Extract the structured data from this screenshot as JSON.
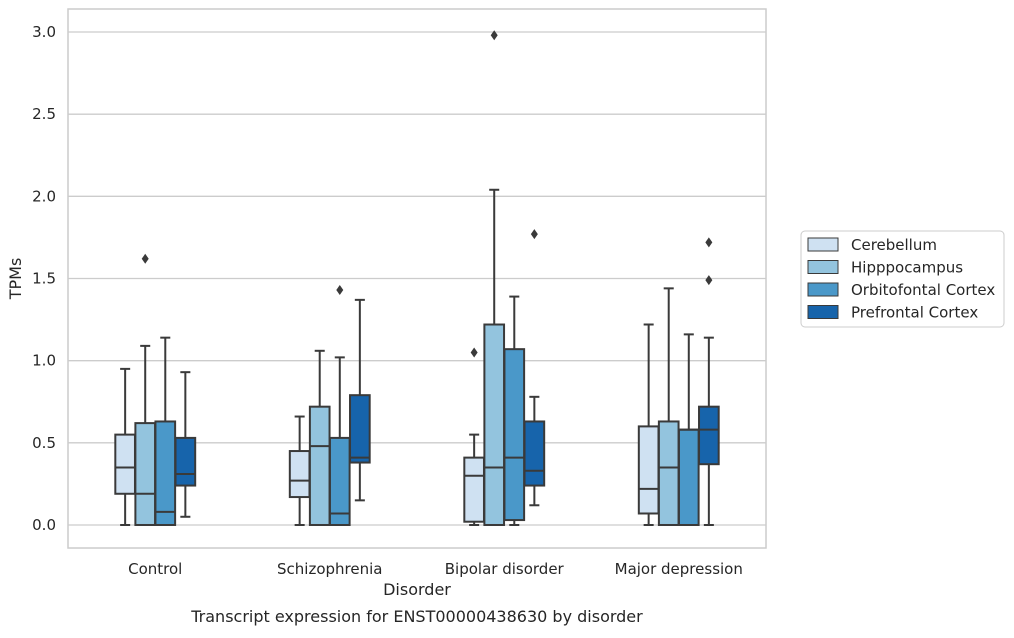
{
  "caption": "Transcript expression for ENST00000438630 by disorder",
  "colors": {
    "Cerebellum": "#cfe1f2",
    "Hipppocampus": "#93c4de",
    "Orbitofontal Cortex": "#4a98c9",
    "Prefrontal Cortex": "#1764ab",
    "edge": "#3a3a3a",
    "grid": "#cccccc",
    "frame": "#cccccc"
  },
  "chart_data": {
    "type": "box",
    "xlabel": "Disorder",
    "ylabel": "TPMs",
    "ylim": [
      -0.14,
      3.14
    ],
    "yticks": [
      0.0,
      0.5,
      1.0,
      1.5,
      2.0,
      2.5,
      3.0
    ],
    "ytick_labels": [
      "0.0",
      "0.5",
      "1.0",
      "1.5",
      "2.0",
      "2.5",
      "3.0"
    ],
    "grid": true,
    "legend_position": "right",
    "categories": [
      "Control",
      "Schizophrenia",
      "Bipolar disorder",
      "Major depression"
    ],
    "series": [
      {
        "name": "Cerebellum",
        "boxes": [
          {
            "whislo": 0.0,
            "q1": 0.19,
            "med": 0.35,
            "q3": 0.55,
            "whishi": 0.95,
            "fliers": []
          },
          {
            "whislo": 0.0,
            "q1": 0.17,
            "med": 0.27,
            "q3": 0.45,
            "whishi": 0.66,
            "fliers": []
          },
          {
            "whislo": 0.0,
            "q1": 0.02,
            "med": 0.3,
            "q3": 0.41,
            "whishi": 0.55,
            "fliers": [
              1.05
            ]
          },
          {
            "whislo": 0.0,
            "q1": 0.07,
            "med": 0.22,
            "q3": 0.6,
            "whishi": 1.22,
            "fliers": []
          }
        ]
      },
      {
        "name": "Hipppocampus",
        "boxes": [
          {
            "whislo": 0.0,
            "q1": 0.0,
            "med": 0.19,
            "q3": 0.62,
            "whishi": 1.09,
            "fliers": [
              1.62
            ]
          },
          {
            "whislo": 0.0,
            "q1": 0.0,
            "med": 0.48,
            "q3": 0.72,
            "whishi": 1.06,
            "fliers": []
          },
          {
            "whislo": 0.0,
            "q1": 0.0,
            "med": 0.35,
            "q3": 1.22,
            "whishi": 2.04,
            "fliers": [
              2.98
            ]
          },
          {
            "whislo": 0.0,
            "q1": 0.0,
            "med": 0.35,
            "q3": 0.63,
            "whishi": 1.44,
            "fliers": []
          }
        ]
      },
      {
        "name": "Orbitofontal Cortex",
        "boxes": [
          {
            "whislo": 0.0,
            "q1": 0.0,
            "med": 0.08,
            "q3": 0.63,
            "whishi": 1.14,
            "fliers": []
          },
          {
            "whislo": 0.0,
            "q1": 0.0,
            "med": 0.07,
            "q3": 0.53,
            "whishi": 1.02,
            "fliers": [
              1.43
            ]
          },
          {
            "whislo": 0.0,
            "q1": 0.03,
            "med": 0.41,
            "q3": 1.07,
            "whishi": 1.39,
            "fliers": []
          },
          {
            "whislo": 0.0,
            "q1": 0.0,
            "med": 0.58,
            "q3": 0.58,
            "whishi": 1.16,
            "fliers": []
          }
        ]
      },
      {
        "name": "Prefrontal Cortex",
        "boxes": [
          {
            "whislo": 0.05,
            "q1": 0.24,
            "med": 0.31,
            "q3": 0.53,
            "whishi": 0.93,
            "fliers": []
          },
          {
            "whislo": 0.15,
            "q1": 0.38,
            "med": 0.41,
            "q3": 0.79,
            "whishi": 1.37,
            "fliers": []
          },
          {
            "whislo": 0.12,
            "q1": 0.24,
            "med": 0.33,
            "q3": 0.63,
            "whishi": 0.78,
            "fliers": [
              1.77
            ]
          },
          {
            "whislo": 0.0,
            "q1": 0.37,
            "med": 0.58,
            "q3": 0.72,
            "whishi": 1.14,
            "fliers": [
              1.49,
              1.72
            ]
          }
        ]
      }
    ]
  }
}
